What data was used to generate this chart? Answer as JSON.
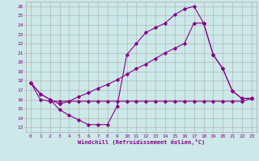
{
  "background_color": "#cce8e8",
  "grid_color": "#aaaaaa",
  "line_color": "#880088",
  "xlabel": "Windchill (Refroidissement éolien,°C)",
  "xlim": [
    -0.5,
    23.5
  ],
  "ylim": [
    12.5,
    26.5
  ],
  "line1_x": [
    0,
    1,
    2,
    3,
    4,
    5,
    6,
    7,
    8,
    9,
    10,
    11,
    12,
    13,
    14,
    15,
    16,
    17,
    18,
    19,
    20,
    21,
    22,
    23
  ],
  "line1_y": [
    17.8,
    16.6,
    16.0,
    14.9,
    14.3,
    13.8,
    13.3,
    13.3,
    13.3,
    15.3,
    20.8,
    22.0,
    23.2,
    23.7,
    24.2,
    25.1,
    25.7,
    26.0,
    24.2,
    20.8,
    19.3,
    16.9,
    16.1,
    16.1
  ],
  "line2_x": [
    0,
    1,
    2,
    3,
    4,
    5,
    6,
    7,
    8,
    9,
    10,
    11,
    12,
    13,
    14,
    15,
    16,
    17,
    18,
    19,
    20,
    21,
    22,
    23
  ],
  "line2_y": [
    17.8,
    16.6,
    16.0,
    15.5,
    15.8,
    16.3,
    16.7,
    17.2,
    17.6,
    18.1,
    18.7,
    19.3,
    19.8,
    20.4,
    21.0,
    21.5,
    22.0,
    24.2,
    24.2,
    20.8,
    19.3,
    16.9,
    16.1,
    16.1
  ],
  "line3_x": [
    0,
    1,
    2,
    3,
    4,
    5,
    6,
    7,
    8,
    9,
    10,
    11,
    12,
    13,
    14,
    15,
    16,
    17,
    18,
    19,
    20,
    21,
    22,
    23
  ],
  "line3_y": [
    17.8,
    16.0,
    15.8,
    15.8,
    15.8,
    15.8,
    15.8,
    15.8,
    15.8,
    15.8,
    15.8,
    15.8,
    15.8,
    15.8,
    15.8,
    15.8,
    15.8,
    15.8,
    15.8,
    15.8,
    15.8,
    15.8,
    15.8,
    16.1
  ]
}
